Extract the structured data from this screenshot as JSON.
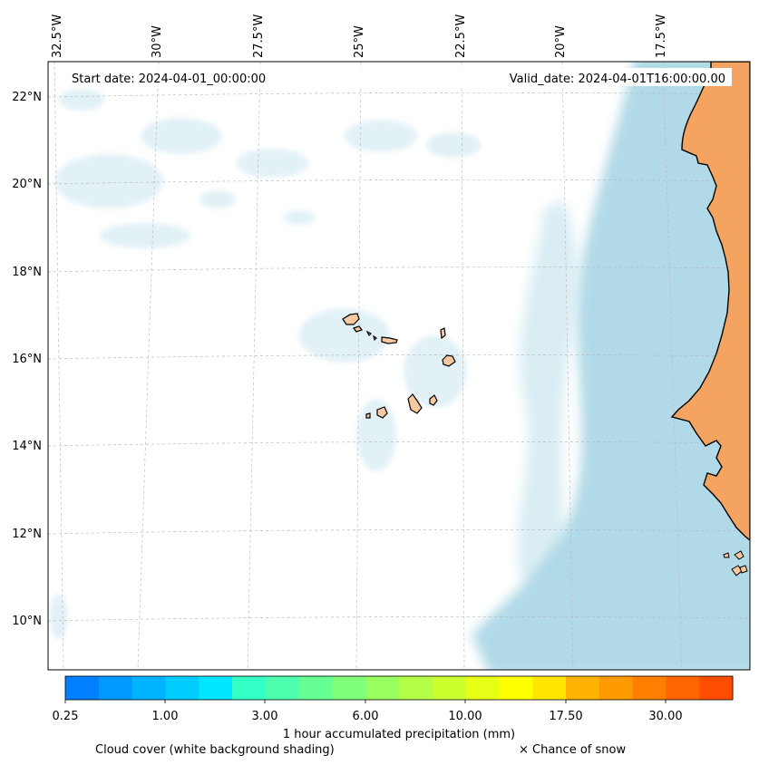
{
  "map": {
    "start_date": "Start date: 2024-04-01_00:00:00",
    "valid_date": "Valid_date: 2024-04-01T16:00:00.00",
    "lon_labels": [
      "32.5°W",
      "30°W",
      "27.5°W",
      "25°W",
      "22.5°W",
      "20°W",
      "17.5°W"
    ],
    "lat_labels": [
      "22°N",
      "20°N",
      "18°N",
      "16°N",
      "14°N",
      "12°N",
      "10°N"
    ],
    "colors": {
      "land": "#f4a460",
      "islands": "#f8c9a0",
      "ocean_cloud": "#add8e6",
      "coast": "#000000",
      "grid": "#bbbbbb"
    }
  },
  "colorbar": {
    "tick_labels": [
      "0.25",
      "1.00",
      "3.00",
      "6.00",
      "10.00",
      "17.50",
      "30.00"
    ],
    "colors": [
      "#0080ff",
      "#0099ff",
      "#00b3ff",
      "#00ccff",
      "#00e6ff",
      "#19ffe0",
      "#33ffc7",
      "#4dffad",
      "#66ff94",
      "#80ff7a",
      "#99ff61",
      "#b3ff47",
      "#ccff2e",
      "#e6ff14",
      "#ffff00",
      "#ffe600",
      "#ffcc00",
      "#ffb300",
      "#ff9900",
      "#ff8000",
      "#ff6600",
      "#ff4d00"
    ],
    "label": "1 hour accumulated precipitation (mm)",
    "cloud_note": "Cloud cover (white background shading)",
    "snow_note": "× Chance of snow"
  }
}
